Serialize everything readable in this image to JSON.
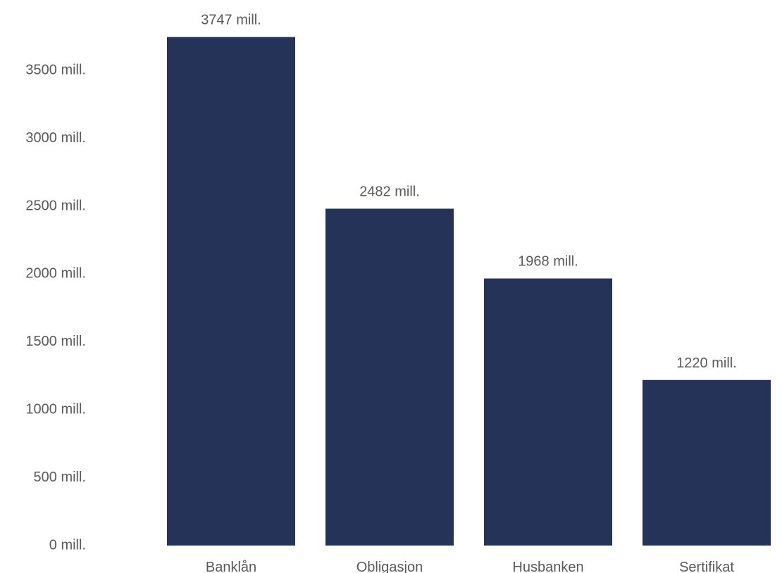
{
  "chart_data": {
    "type": "bar",
    "title": "",
    "xlabel": "",
    "ylabel": "",
    "categories": [
      "Banklån",
      "Obligasjon",
      "Husbanken",
      "Sertifikat"
    ],
    "values": [
      3747,
      2482,
      1968,
      1220
    ],
    "data_labels": [
      "3747 mill.",
      "2482 mill.",
      "1968 mill.",
      "1220 mill."
    ],
    "ylim": [
      0,
      3750
    ],
    "yticks": [
      0,
      500,
      1000,
      1500,
      2000,
      2500,
      3000,
      3500
    ],
    "ytick_labels": [
      "0 mill.",
      "500 mill.",
      "1000 mill.",
      "1500 mill.",
      "2000 mill.",
      "2500 mill.",
      "3000 mill.",
      "3500 mill."
    ],
    "grid": false,
    "legend": "none",
    "colors": {
      "bar": "#253359",
      "text": "#5a5a5a"
    }
  }
}
